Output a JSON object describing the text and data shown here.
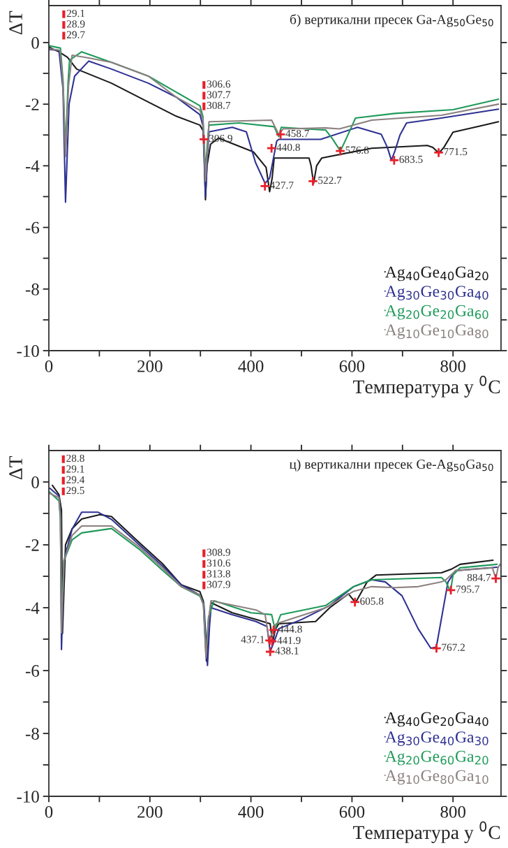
{
  "chart_data": [
    {
      "type": "line",
      "title": "б) вертикални пресек Ga-Ag$_{50}$Ge$_{50}$",
      "xlabel": "Температура у $^{0}$C",
      "ylabel": "ΔT",
      "xlim": [
        0,
        895
      ],
      "ylim": [
        -10,
        1.2
      ],
      "xticks": [
        0,
        {
          "value": 100,
          "label": null
        },
        200,
        {
          "value": 300,
          "label": null
        },
        400,
        {
          "value": 500,
          "label": null
        },
        600,
        {
          "value": 700,
          "label": null
        },
        800
      ],
      "yticks": [
        -10,
        {
          "value": -9,
          "label": null
        },
        -8,
        {
          "value": -7,
          "label": null
        },
        -6,
        {
          "value": -5,
          "label": null
        },
        -4,
        {
          "value": -3,
          "label": null
        },
        -2,
        {
          "value": -1,
          "label": null
        },
        0
      ],
      "grid": false,
      "legend": "bottom right",
      "line_style": "solid",
      "marker": "none",
      "series": [
        {
          "name": "Ag$_{40}$Ge$_{40}$Ga$_{20}$",
          "color": "#1a1a1a",
          "x": [
            0,
            20,
            37,
            55,
            124,
            197,
            252,
            299,
            305,
            307,
            310,
            313,
            320,
            336,
            405,
            430,
            437,
            442,
            446,
            455,
            515,
            519,
            524,
            530,
            540,
            639,
            749,
            760,
            772,
            782,
            800,
            850,
            890
          ],
          "values": [
            -0.15,
            -0.3,
            -0.48,
            -0.86,
            -1.32,
            -1.93,
            -2.39,
            -2.68,
            -2.85,
            -3.3,
            -5.1,
            -4.0,
            -3.3,
            -3.1,
            -3.55,
            -4.05,
            -4.84,
            -4.4,
            -3.75,
            -3.75,
            -3.75,
            -4.0,
            -4.57,
            -4.0,
            -3.75,
            -3.43,
            -3.34,
            -3.4,
            -3.59,
            -3.4,
            -2.91,
            -2.72,
            -2.57
          ]
        },
        {
          "name": "Ag$_{30}$Ge$_{30}$Ga$_{40}$",
          "color": "#2e3192",
          "x": [
            2,
            20,
            28,
            33,
            40,
            51,
            79,
            124,
            197,
            252,
            299,
            305,
            310,
            314,
            317,
            363,
            391,
            409,
            428,
            437,
            451,
            455,
            538,
            611,
            658,
            670,
            678,
            685,
            695,
            708,
            777,
            890
          ],
          "values": [
            -0.23,
            -0.25,
            -1.5,
            -5.18,
            -2.0,
            -1.09,
            -0.6,
            -0.86,
            -1.32,
            -1.77,
            -2.34,
            -2.7,
            -5.0,
            -3.6,
            -2.9,
            -2.75,
            -2.9,
            -3.89,
            -4.57,
            -4.4,
            -3.2,
            -3.14,
            -3.14,
            -2.75,
            -2.98,
            -3.4,
            -3.82,
            -3.52,
            -3.0,
            -2.61,
            -2.45,
            -2.16
          ]
        },
        {
          "name": "Ag$_{20}$Ge$_{20}$Ga$_{60}$",
          "color": "#1f9a5a",
          "x": [
            0,
            23,
            28,
            33,
            38,
            41,
            65,
            124,
            197,
            252,
            299,
            305,
            310,
            314,
            317,
            377,
            446,
            452,
            455,
            460,
            548,
            562,
            577,
            588,
            607,
            685,
            800,
            890
          ],
          "values": [
            -0.1,
            -0.18,
            -1.2,
            -3.52,
            -1.3,
            -0.57,
            -0.3,
            -0.64,
            -1.09,
            -1.61,
            -2.05,
            -2.4,
            -4.2,
            -3.2,
            -2.68,
            -2.61,
            -2.73,
            -2.95,
            -3.05,
            -2.75,
            -2.84,
            -3.14,
            -3.52,
            -3.14,
            -2.45,
            -2.3,
            -2.18,
            -1.84
          ]
        },
        {
          "name": "Ag$_{10}$Ge$_{10}$Ga$_{80}$",
          "color": "#8c8080",
          "x": [
            0,
            22,
            28,
            33,
            39,
            46,
            79,
            124,
            197,
            252,
            299,
            305,
            310,
            314,
            317,
            441,
            455,
            464,
            548,
            575,
            639,
            777,
            890
          ],
          "values": [
            -0.2,
            -0.25,
            -1.3,
            -3.7,
            -1.4,
            -0.41,
            -0.5,
            -0.64,
            -1.09,
            -1.77,
            -2.2,
            -2.5,
            -4.5,
            -3.4,
            -2.57,
            -2.52,
            -2.98,
            -2.8,
            -2.77,
            -2.8,
            -2.52,
            -2.36,
            -2.0
          ]
        }
      ],
      "annotations": [
        "29.1\n28.9\n29.7",
        "306.6\n307.7\n308.7",
        {
          "text": "306.9",
          "x": 306.9,
          "y": -3.14
        },
        {
          "text": "458.7",
          "x": 458.7,
          "y": -2.98
        },
        {
          "text": "440.8",
          "x": 440.8,
          "y": -3.43
        },
        {
          "text": "427.7",
          "x": 427.7,
          "y": -4.66
        },
        {
          "text": "522.7",
          "x": 522.7,
          "y": -4.5
        },
        {
          "text": "576.8",
          "x": 576.8,
          "y": -3.52
        },
        {
          "text": "683.5",
          "x": 683.5,
          "y": -3.82
        },
        {
          "text": "771.5",
          "x": 771.5,
          "y": -3.57
        }
      ]
    },
    {
      "type": "line",
      "title": "ц) вертикални пресек Ge-Ag$_{50}$Ga$_{50}$",
      "xlabel": "Температура у $^{0}$C",
      "ylabel": "ΔT",
      "xlim": [
        0,
        895
      ],
      "ylim": [
        -10,
        1.0
      ],
      "xticks": [
        0,
        {
          "value": 100,
          "label": null
        },
        200,
        {
          "value": 300,
          "label": null
        },
        400,
        {
          "value": 500,
          "label": null
        },
        600,
        {
          "value": 700,
          "label": null
        },
        800
      ],
      "yticks": [
        -10,
        {
          "value": -9,
          "label": null
        },
        -8,
        {
          "value": -7,
          "label": null
        },
        -6,
        {
          "value": -5,
          "label": null
        },
        -4,
        {
          "value": -3,
          "label": null
        },
        -2,
        {
          "value": -1,
          "label": null
        },
        0
      ],
      "grid": false,
      "legend": "bottom right",
      "line_style": "solid",
      "marker": "none",
      "series": [
        {
          "name": "Ag$_{40}$Ge$_{20}$Ga$_{40}$",
          "color": "#1a1a1a",
          "x": [
            7,
            20,
            25,
            27,
            33,
            46,
            65,
            101,
            124,
            179,
            225,
            262,
            299,
            306,
            312,
            316,
            321,
            363,
            410,
            438,
            443,
            448,
            455,
            528,
            556,
            593,
            607,
            630,
            648,
            777,
            796,
            814,
            879
          ],
          "values": [
            -0.11,
            -0.4,
            -0.9,
            -4.82,
            -2.0,
            -1.49,
            -1.18,
            -1.04,
            -1.1,
            -1.93,
            -2.6,
            -3.27,
            -3.49,
            -3.8,
            -5.7,
            -4.5,
            -3.84,
            -4.16,
            -4.37,
            -4.51,
            -5.1,
            -4.7,
            -4.51,
            -4.44,
            -4.0,
            -3.56,
            -3.84,
            -3.18,
            -2.96,
            -2.89,
            -2.78,
            -2.62,
            -2.49
          ]
        },
        {
          "name": "Ag$_{30}$Ge$_{40}$Ga$_{30}$",
          "color": "#2e3192",
          "x": [
            2,
            20,
            23,
            25,
            30,
            46,
            65,
            97,
            124,
            179,
            225,
            262,
            299,
            307,
            314,
            318,
            321,
            363,
            410,
            432,
            438,
            450,
            455,
            501,
            556,
            603,
            639,
            666,
            699,
            731,
            756,
            767,
            790,
            805,
            887
          ],
          "values": [
            -0.2,
            -0.45,
            -1.0,
            -5.33,
            -2.5,
            -1.5,
            -0.96,
            -0.96,
            -1.19,
            -2.0,
            -2.67,
            -3.27,
            -3.6,
            -3.9,
            -5.84,
            -4.6,
            -4.0,
            -4.22,
            -4.44,
            -4.6,
            -5.4,
            -4.9,
            -4.67,
            -4.37,
            -3.93,
            -3.33,
            -3.11,
            -3.18,
            -3.62,
            -4.67,
            -5.29,
            -5.25,
            -3.18,
            -2.82,
            -2.71
          ]
        },
        {
          "name": "Ag$_{20}$Ge$_{60}$Ga$_{20}$",
          "color": "#1f9a5a",
          "x": [
            0,
            20,
            23,
            25,
            30,
            46,
            65,
            124,
            179,
            225,
            262,
            299,
            306,
            311,
            316,
            327,
            400,
            441,
            445,
            448,
            459,
            548,
            603,
            639,
            777,
            786,
            795,
            800,
            814,
            887
          ],
          "values": [
            -0.3,
            -0.6,
            -1.2,
            -4.67,
            -2.5,
            -1.84,
            -1.62,
            -1.48,
            -2.14,
            -2.81,
            -3.33,
            -3.63,
            -3.9,
            -5.5,
            -4.3,
            -3.78,
            -4.16,
            -4.22,
            -4.5,
            -4.67,
            -4.22,
            -3.93,
            -3.33,
            -3.11,
            -3.04,
            -3.18,
            -3.49,
            -2.96,
            -2.73,
            -2.62
          ]
        },
        {
          "name": "Ag$_{10}$Ge$_{80}$Ga$_{10}$",
          "color": "#8c8080",
          "x": [
            0,
            20,
            23,
            25,
            30,
            46,
            65,
            124,
            179,
            225,
            262,
            299,
            306,
            311,
            316,
            321,
            410,
            428,
            436,
            450,
            548,
            603,
            639,
            685,
            731,
            777,
            786,
            805,
            878,
            884.7,
            889,
            893
          ],
          "values": [
            -0.35,
            -0.5,
            -1.1,
            -4.8,
            -2.5,
            -1.7,
            -1.4,
            -1.4,
            -2.07,
            -2.74,
            -3.33,
            -3.6,
            -3.9,
            -5.6,
            -4.4,
            -3.78,
            -4.07,
            -4.22,
            -5.02,
            -4.51,
            -4.0,
            -3.48,
            -3.33,
            -3.36,
            -3.33,
            -3.18,
            -3.11,
            -2.82,
            -2.73,
            -3.07,
            -2.73,
            -2.62
          ]
        }
      ],
      "annotations": [
        "28.8\n29.1\n29.4\n29.5",
        "308.9\n310.6\n313.8\n307.9",
        {
          "text": "437.1",
          "x": 437.1,
          "y": -5.04
        },
        {
          "text": "441.9",
          "x": 441.9,
          "y": -5.07
        },
        {
          "text": "444.8",
          "x": 444.8,
          "y": -4.71
        },
        {
          "text": "438.1",
          "x": 438.1,
          "y": -5.4
        },
        {
          "text": "605.8",
          "x": 605.8,
          "y": -3.82
        },
        {
          "text": "767.2",
          "x": 767.2,
          "y": -5.29
        },
        {
          "text": "795.7",
          "x": 795.7,
          "y": -3.44
        },
        {
          "text": "884.7",
          "x": 884.7,
          "y": -3.07
        }
      ]
    }
  ]
}
